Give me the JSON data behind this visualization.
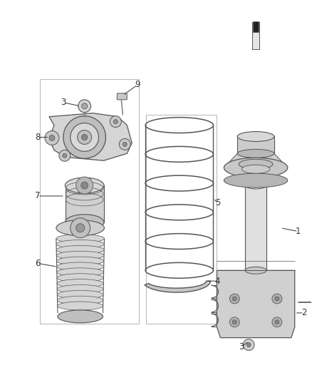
{
  "background_color": "#ffffff",
  "fig_width": 4.38,
  "fig_height": 5.33,
  "dpi": 100,
  "outline_color": "#555555",
  "light_gray": "#d8d8d8",
  "mid_gray": "#c0c0c0",
  "dark_gray": "#999999",
  "line_color": "#444444",
  "label_color": "#333333",
  "label_fs": 8.5,
  "panel_color": "#aaaaaa"
}
